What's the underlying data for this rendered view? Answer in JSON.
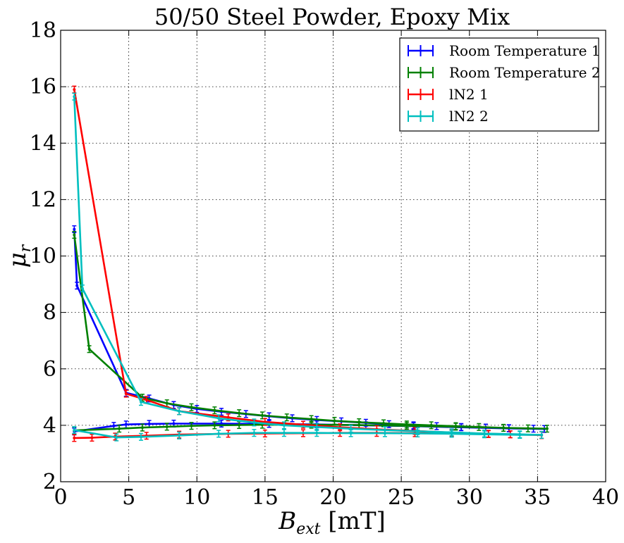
{
  "chart_data": {
    "type": "line",
    "title": "50/50 Steel Powder, Epoxy Mix",
    "xlabel": "B_ext [mT]",
    "xlabel_main": "B",
    "xlabel_sub": "ext",
    "xlabel_unit": " [mT]",
    "ylabel": "μ_r",
    "ylabel_main": "μ",
    "ylabel_sub": "r",
    "xlim": [
      0,
      40
    ],
    "ylim": [
      2,
      18
    ],
    "xticks": [
      0,
      5,
      10,
      15,
      20,
      25,
      30,
      35,
      40
    ],
    "yticks": [
      2,
      4,
      6,
      8,
      10,
      12,
      14,
      16,
      18
    ],
    "grid": true,
    "legend_position": "top-right",
    "series": [
      {
        "name": "Room Temperature 1",
        "color": "#0000ff",
        "x": [
          1.0,
          1.2,
          4.8,
          6.5,
          8.3,
          10.0,
          11.8,
          13.6,
          15.3,
          17.0,
          18.8,
          20.6,
          22.4,
          24.1,
          25.9,
          27.6,
          29.4,
          31.2,
          32.9,
          34.7,
          35.5,
          32.9,
          29.4,
          25.9,
          22.4,
          18.8,
          15.3,
          11.8,
          8.3,
          6.5,
          4.8,
          3.9,
          1.0
        ],
        "y": [
          10.95,
          8.95,
          5.15,
          4.95,
          4.72,
          4.58,
          4.48,
          4.4,
          4.32,
          4.25,
          4.19,
          4.14,
          4.09,
          4.04,
          4.0,
          3.97,
          3.94,
          3.92,
          3.9,
          3.88,
          3.87,
          3.89,
          3.93,
          3.97,
          4.0,
          4.03,
          4.05,
          4.06,
          4.06,
          4.05,
          4.03,
          3.98,
          3.78
        ],
        "yerr": 0.12
      },
      {
        "name": "Room Temperature 2",
        "color": "#008000",
        "x": [
          1.0,
          2.1,
          6.0,
          7.8,
          9.6,
          11.3,
          13.1,
          14.8,
          16.6,
          18.4,
          20.1,
          21.9,
          23.7,
          25.4,
          27.2,
          29.0,
          30.7,
          32.5,
          34.3,
          35.7,
          32.5,
          29.0,
          25.4,
          21.9,
          18.4,
          14.8,
          13.1,
          11.3,
          9.6,
          7.8,
          6.0,
          4.3,
          1.0
        ],
        "y": [
          10.75,
          6.7,
          4.98,
          4.78,
          4.64,
          4.53,
          4.43,
          4.35,
          4.28,
          4.22,
          4.16,
          4.11,
          4.07,
          4.03,
          4.0,
          3.97,
          3.94,
          3.91,
          3.89,
          3.88,
          3.91,
          3.95,
          3.98,
          4.01,
          4.02,
          4.02,
          4.01,
          4.0,
          3.98,
          3.95,
          3.92,
          3.88,
          3.82
        ],
        "yerr": 0.12
      },
      {
        "name": "lN2 1",
        "color": "#ff0000",
        "x": [
          1.0,
          4.8,
          6.3,
          8.7,
          12.3,
          15.0,
          17.8,
          20.5,
          23.2,
          26.0,
          28.7,
          31.4,
          33.0,
          35.3,
          33.0,
          31.4,
          28.7,
          26.0,
          23.2,
          20.5,
          17.8,
          15.0,
          12.3,
          8.7,
          6.3,
          4.0,
          2.3,
          1.0
        ],
        "y": [
          15.9,
          5.12,
          4.9,
          4.5,
          4.28,
          4.12,
          4.02,
          3.93,
          3.86,
          3.8,
          3.74,
          3.7,
          3.68,
          3.65,
          3.68,
          3.69,
          3.71,
          3.72,
          3.73,
          3.73,
          3.72,
          3.71,
          3.7,
          3.67,
          3.63,
          3.6,
          3.56,
          3.55
        ],
        "yerr": 0.12
      },
      {
        "name": "lN2 2",
        "color": "#00bfbf",
        "x": [
          1.0,
          1.6,
          5.9,
          8.7,
          11.6,
          14.2,
          16.4,
          18.8,
          21.3,
          23.8,
          26.2,
          28.7,
          31.1,
          33.7,
          35.3,
          33.7,
          31.1,
          28.7,
          26.2,
          23.8,
          21.3,
          18.8,
          16.4,
          14.2,
          11.6,
          8.7,
          5.9,
          4.1,
          1.0
        ],
        "y": [
          15.65,
          8.85,
          4.83,
          4.5,
          4.25,
          4.1,
          4.0,
          3.94,
          3.88,
          3.83,
          3.79,
          3.75,
          3.71,
          3.68,
          3.66,
          3.66,
          3.68,
          3.7,
          3.71,
          3.72,
          3.72,
          3.73,
          3.73,
          3.73,
          3.7,
          3.64,
          3.59,
          3.57,
          3.83
        ],
        "yerr": 0.12
      }
    ]
  }
}
